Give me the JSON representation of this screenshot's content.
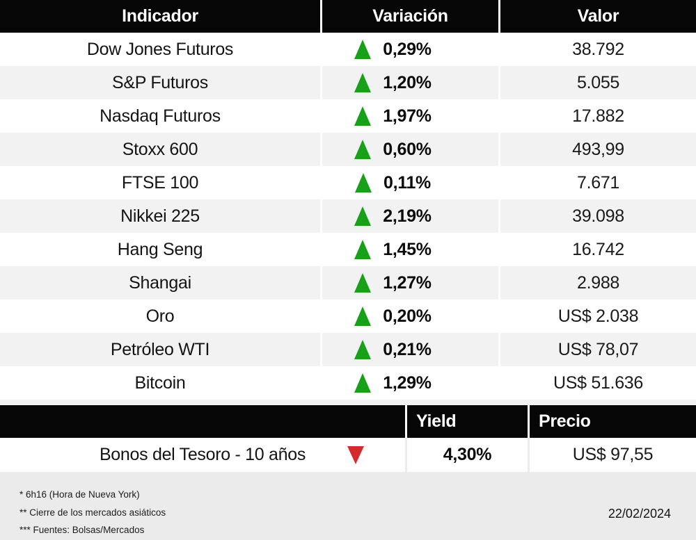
{
  "colors": {
    "header_bg": "#060606",
    "header_text": "#ffffff",
    "row_alt_bg": "#f2f2f2",
    "footer_bg": "#ebebeb",
    "up_green": "#18a018",
    "down_red": "#d42c2c"
  },
  "icons": {
    "up": "up-triangle-icon",
    "down": "down-triangle-icon"
  },
  "t1": {
    "headers": {
      "indicator": "Indicador",
      "variation": "Variación",
      "value": "Valor"
    },
    "rows": [
      {
        "indicator": "Dow Jones Futuros",
        "direction": "up",
        "variation": "0,29%",
        "value": "38.792"
      },
      {
        "indicator": "S&P Futuros",
        "direction": "up",
        "variation": "1,20%",
        "value": "5.055"
      },
      {
        "indicator": "Nasdaq Futuros",
        "direction": "up",
        "variation": "1,97%",
        "value": "17.882"
      },
      {
        "indicator": "Stoxx 600",
        "direction": "up",
        "variation": "0,60%",
        "value": "493,99"
      },
      {
        "indicator": "FTSE 100",
        "direction": "up",
        "variation": "0,11%",
        "value": "7.671"
      },
      {
        "indicator": "Nikkei 225",
        "direction": "up",
        "variation": "2,19%",
        "value": "39.098"
      },
      {
        "indicator": "Hang Seng",
        "direction": "up",
        "variation": "1,45%",
        "value": "16.742"
      },
      {
        "indicator": "Shangai",
        "direction": "up",
        "variation": "1,27%",
        "value": "2.988"
      },
      {
        "indicator": "Oro",
        "direction": "up",
        "variation": "0,20%",
        "value": "US$ 2.038"
      },
      {
        "indicator": "Petróleo WTI",
        "direction": "up",
        "variation": "0,21%",
        "value": "US$ 78,07"
      },
      {
        "indicator": "Bitcoin",
        "direction": "up",
        "variation": "1,29%",
        "value": "US$ 51.636"
      }
    ]
  },
  "t2": {
    "headers": {
      "indicator": "",
      "yield": "Yield",
      "price": "Precio"
    },
    "rows": [
      {
        "indicator": "Bonos del Tesoro - 10 años",
        "direction": "down",
        "yield": "4,30%",
        "price": "US$ 97,55"
      }
    ]
  },
  "footer": {
    "notes": [
      "* 6h16 (Hora de Nueva York)",
      "** Cierre de los mercados asiáticos",
      "*** Fuentes: Bolsas/Mercados"
    ],
    "date": "22/02/2024"
  },
  "chart_data": [
    {
      "type": "table",
      "columns": [
        "Indicador",
        "Variación",
        "Valor"
      ],
      "rows": [
        [
          "Dow Jones Futuros",
          "▲ 0,29%",
          "38.792"
        ],
        [
          "S&P Futuros",
          "▲ 1,20%",
          "5.055"
        ],
        [
          "Nasdaq Futuros",
          "▲ 1,97%",
          "17.882"
        ],
        [
          "Stoxx 600",
          "▲ 0,60%",
          "493,99"
        ],
        [
          "FTSE 100",
          "▲ 0,11%",
          "7.671"
        ],
        [
          "Nikkei 225",
          "▲ 2,19%",
          "39.098"
        ],
        [
          "Hang Seng",
          "▲ 1,45%",
          "16.742"
        ],
        [
          "Shangai",
          "▲ 1,27%",
          "2.988"
        ],
        [
          "Oro",
          "▲ 0,20%",
          "US$ 2.038"
        ],
        [
          "Petróleo WTI",
          "▲ 0,21%",
          "US$ 78,07"
        ],
        [
          "Bitcoin",
          "▲ 1,29%",
          "US$ 51.636"
        ]
      ]
    },
    {
      "type": "table",
      "columns": [
        "",
        "Yield",
        "Precio"
      ],
      "rows": [
        [
          "Bonos del Tesoro - 10 años",
          "▼ 4,30%",
          "US$ 97,55"
        ]
      ]
    }
  ]
}
